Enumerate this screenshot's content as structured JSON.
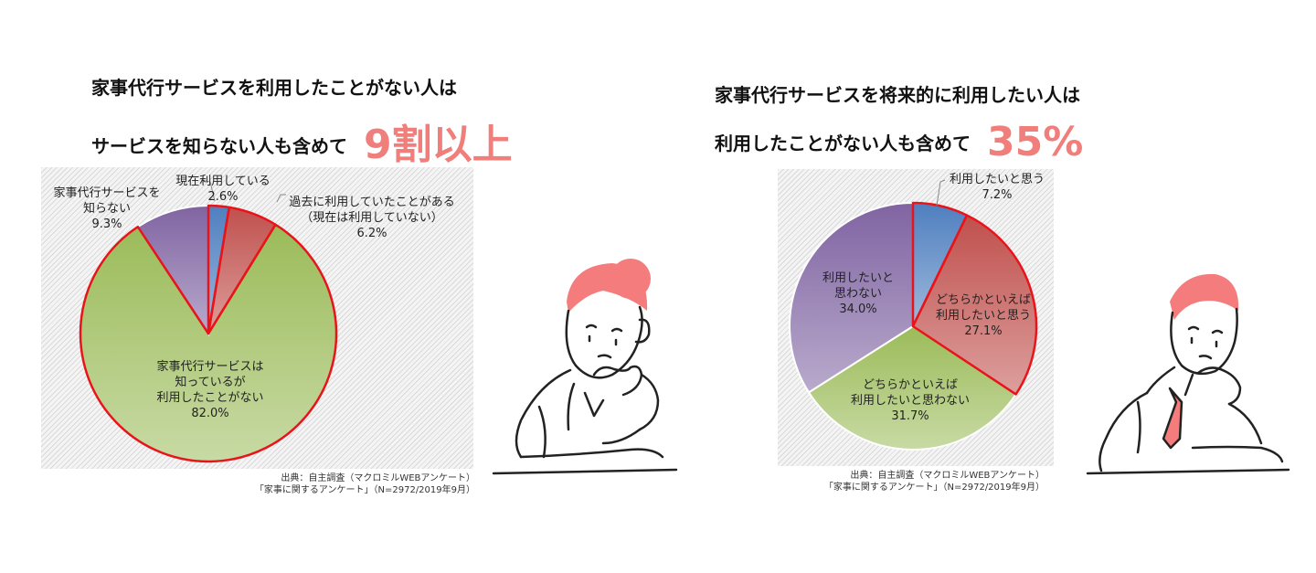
{
  "left": {
    "title_line1": "家事代行サービスを利用したことがない人は",
    "title_line2": "サービスを知らない人も含めて",
    "highlight": "9割以上",
    "source_line1": "出典：自主調査（マクロミルWEBアンケート）",
    "source_line2": "「家事に関するアンケート」（N=2972/2019年9月）"
  },
  "right": {
    "title_line1": "家事代行サービスを将来的に利用したい人は",
    "title_line2": "利用したことがない人も含めて",
    "highlight": "35%",
    "source_line1": "出典：自主調査（マクロミルWEBアンケート）",
    "source_line2": "「家事に関するアンケート」（N=2972/2019年9月）"
  },
  "colors": {
    "accent": "#f07e7a",
    "highlight_border": "#e8141a"
  },
  "chart_data": [
    {
      "type": "pie",
      "slices": [
        {
          "label": [
            "現在利用している"
          ],
          "value": 2.6,
          "value_label": "2.6%",
          "color": "#4f7fbf",
          "highlighted": true
        },
        {
          "label": [
            "過去に利用していたことがある",
            "（現在は利用していない）"
          ],
          "value": 6.2,
          "value_label": "6.2%",
          "color": "#c0504d",
          "highlighted": true
        },
        {
          "label": [
            "家事代行サービスは",
            "知っているが",
            "利用したことがない"
          ],
          "value": 82.0,
          "value_label": "82.0%",
          "color": "#9bbb59",
          "highlighted": true
        },
        {
          "label": [
            "家事代行サービスを",
            "知らない"
          ],
          "value": 9.3,
          "value_label": "9.3%",
          "color": "#8064a2",
          "highlighted": false
        }
      ]
    },
    {
      "type": "pie",
      "slices": [
        {
          "label": [
            "利用したいと思う"
          ],
          "value": 7.2,
          "value_label": "7.2%",
          "color": "#4f7fbf",
          "highlighted": true
        },
        {
          "label": [
            "どちらかといえば",
            "利用したいと思う"
          ],
          "value": 27.1,
          "value_label": "27.1%",
          "color": "#c0504d",
          "highlighted": true
        },
        {
          "label": [
            "どちらかといえば",
            "利用したいと思わない"
          ],
          "value": 31.7,
          "value_label": "31.7%",
          "color": "#9bbb59",
          "highlighted": false
        },
        {
          "label": [
            "利用したいと",
            "思わない"
          ],
          "value": 34.0,
          "value_label": "34.0%",
          "color": "#8064a2",
          "highlighted": false
        }
      ]
    }
  ]
}
